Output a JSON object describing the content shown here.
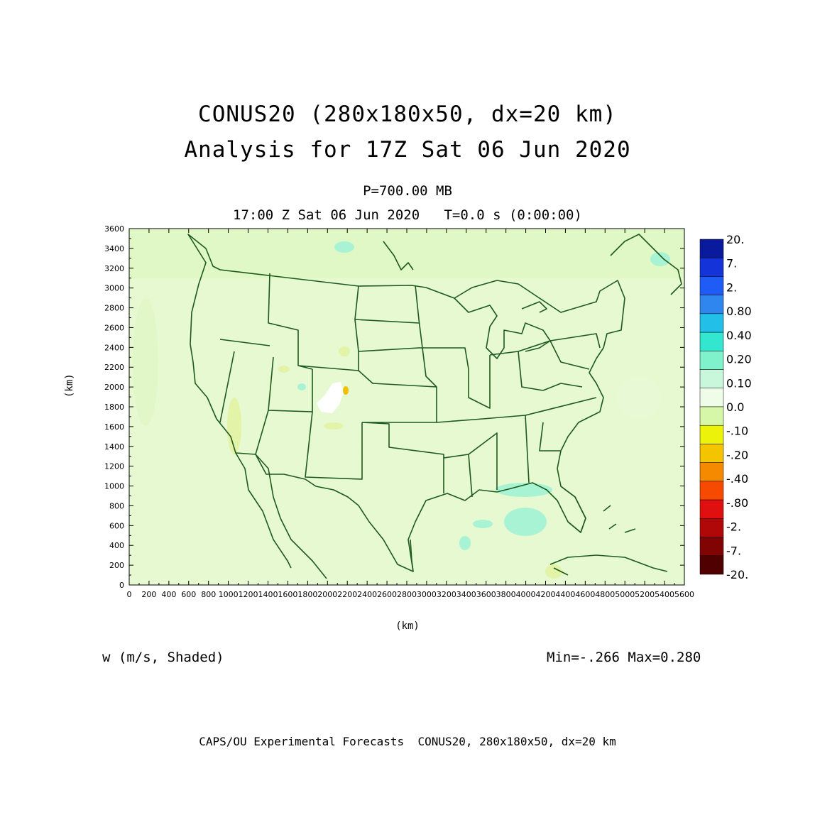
{
  "title": {
    "line1": "CONUS20 (280x180x50, dx=20 km)",
    "line2": "Analysis for 17Z Sat 06 Jun 2020"
  },
  "level_label": "P=700.00 MB",
  "valid_time": "17:00 Z Sat 06 Jun 2020   T=0.0 s (0:00:00)",
  "axes": {
    "x_label": "(km)",
    "y_label": "(km)",
    "x_ticks": [
      "0",
      "200",
      "400",
      "600",
      "800",
      "1000",
      "1200",
      "1400",
      "1600",
      "1800",
      "2000",
      "2200",
      "2400",
      "2600",
      "2800",
      "3000",
      "3200",
      "3400",
      "3600",
      "3800",
      "4000",
      "4200",
      "4400",
      "4600",
      "4800",
      "5000",
      "5200",
      "5400",
      "5600"
    ],
    "y_ticks": [
      "0",
      "200",
      "400",
      "600",
      "800",
      "1000",
      "1200",
      "1400",
      "1600",
      "1800",
      "2000",
      "2200",
      "2400",
      "2600",
      "2800",
      "3000",
      "3200",
      "3400",
      "3600"
    ]
  },
  "colorbar": {
    "labels": [
      "20.",
      "7.",
      "2.",
      "0.80",
      "0.40",
      "0.20",
      "0.10",
      "0.0",
      "-.10",
      "-.20",
      "-.40",
      "-.80",
      "-2.",
      "-7.",
      "-20."
    ],
    "colors": [
      "#0a1a9c",
      "#1433d8",
      "#1f5cf5",
      "#2e86ee",
      "#22bfe8",
      "#33e6d0",
      "#7ff2cc",
      "#c9f7dc",
      "#eefce8",
      "#d6f7a8",
      "#ecf20a",
      "#f5c400",
      "#f58a00",
      "#f54a00",
      "#e01010",
      "#b00808",
      "#800404",
      "#500000"
    ],
    "field_colors": {
      "background": "#e0f7c6",
      "land": "#e8fad6",
      "ocean": "#dcf7cc",
      "positive": "#9ef2d6",
      "negative": "#e2f2a0",
      "max_spot": "#ffffff",
      "min_spot": "#f0c000",
      "border": "#1d5a1d"
    }
  },
  "field_label": "w (m/s, Shaded)",
  "minmax": "Min=-.266 Max=0.280",
  "footer": "CAPS/OU Experimental Forecasts  CONUS20, 280x180x50, dx=20 km"
}
